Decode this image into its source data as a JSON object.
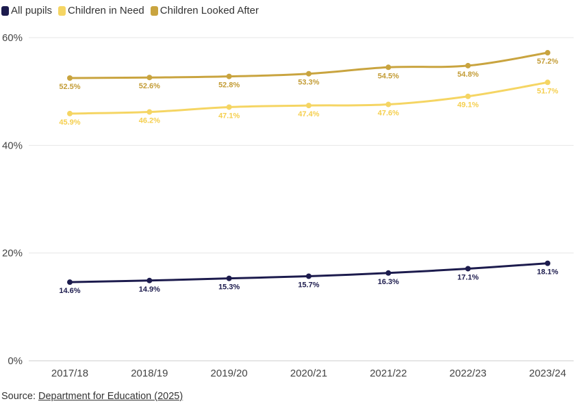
{
  "chart_data": {
    "type": "line",
    "categories": [
      "2017/18",
      "2018/19",
      "2019/20",
      "2020/21",
      "2021/22",
      "2022/23",
      "2023/24"
    ],
    "series": [
      {
        "name": "All pupils",
        "color": "#1c1b4d",
        "values": [
          14.6,
          14.9,
          15.3,
          15.7,
          16.3,
          17.1,
          18.1
        ]
      },
      {
        "name": "Children in Need",
        "color": "#f5d563",
        "values": [
          45.9,
          46.2,
          47.1,
          47.4,
          47.6,
          49.1,
          51.7
        ]
      },
      {
        "name": "Children Looked After",
        "color": "#c9a43f",
        "values": [
          52.5,
          52.6,
          52.8,
          53.3,
          54.5,
          54.8,
          57.2
        ]
      }
    ],
    "ylim": [
      0,
      60
    ],
    "yticks": [
      "0%",
      "20%",
      "40%",
      "60%"
    ],
    "value_suffix": "%",
    "grid": true,
    "legend_position": "top-left"
  },
  "source": {
    "prefix": "Source: ",
    "link_text": "Department for Education (2025)"
  }
}
